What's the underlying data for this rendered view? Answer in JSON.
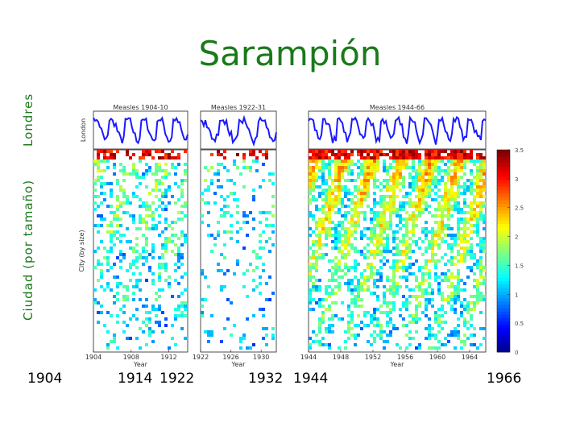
{
  "title": "Sarampión",
  "left_label_top": "Londres",
  "left_label_bottom": "Ciudad (por tamaño)",
  "bottom_years": [
    "1904",
    "1914",
    "1922",
    "1932",
    "1944",
    "1966"
  ],
  "chart_data": [
    {
      "type": "line",
      "title": "Measles 1904-10",
      "ylabel": "London",
      "x_range": [
        1904,
        1914
      ],
      "panel": 1
    },
    {
      "type": "line",
      "title": "Measles 1922-31",
      "x_range": [
        1922,
        1932
      ],
      "panel": 2
    },
    {
      "type": "line",
      "title": "Measles 1944-66",
      "x_range": [
        1944,
        1966
      ],
      "panel": 3
    },
    {
      "type": "heatmap",
      "xlabel": "Year",
      "ylabel": "City (by size)",
      "x_range": [
        1904,
        1914
      ],
      "x_ticks": [
        "1904",
        "1908",
        "1912"
      ],
      "panel": 1
    },
    {
      "type": "heatmap",
      "xlabel": "Year",
      "x_range": [
        1922,
        1932
      ],
      "x_ticks": [
        "1922",
        "1926",
        "1930"
      ],
      "panel": 2
    },
    {
      "type": "heatmap",
      "xlabel": "Year",
      "x_range": [
        1944,
        1966
      ],
      "x_ticks": [
        "1944",
        "1948",
        "1952",
        "1956",
        "1960",
        "1964"
      ],
      "colorbar": {
        "range": [
          0,
          3.5
        ],
        "ticks": [
          "0",
          "0.5",
          "1",
          "1.5",
          "2",
          "2.5",
          "3",
          "3.5"
        ]
      },
      "panel": 3
    }
  ]
}
